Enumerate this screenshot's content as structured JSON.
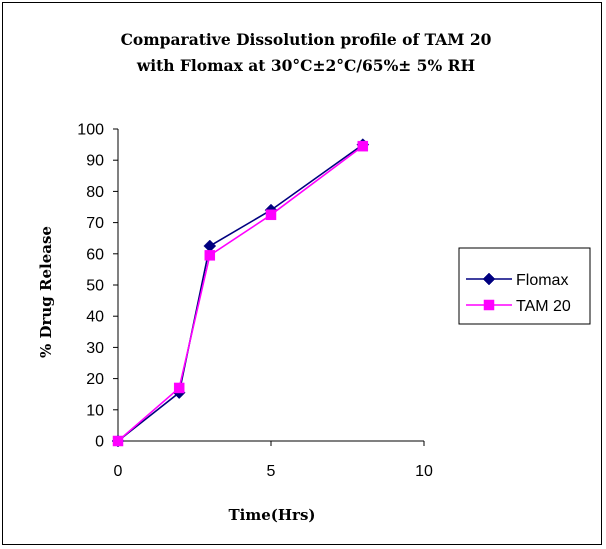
{
  "chart_data": {
    "type": "line",
    "title_lines": [
      "Comparative Dissolution profile of TAM 20",
      "with Flomax at 30°C±2°C/65%± 5% RH"
    ],
    "xlabel": "Time(Hrs)",
    "ylabel": "% Drug Release",
    "xlim": [
      0,
      10
    ],
    "ylim": [
      0,
      100
    ],
    "x_ticks": [
      0,
      5,
      10
    ],
    "y_ticks": [
      0,
      10,
      20,
      30,
      40,
      50,
      60,
      70,
      80,
      90,
      100
    ],
    "grid": false,
    "legend_position": "right",
    "series": [
      {
        "name": "Flomax",
        "color": "#000080",
        "marker": "diamond",
        "x": [
          0,
          2,
          3,
          5,
          8
        ],
        "y": [
          0,
          15.5,
          62.5,
          74,
          95
        ]
      },
      {
        "name": "TAM 20",
        "color": "#ff00ff",
        "marker": "square",
        "x": [
          0,
          2,
          3,
          5,
          8
        ],
        "y": [
          0,
          17,
          59.5,
          72.5,
          94.5
        ]
      }
    ]
  }
}
